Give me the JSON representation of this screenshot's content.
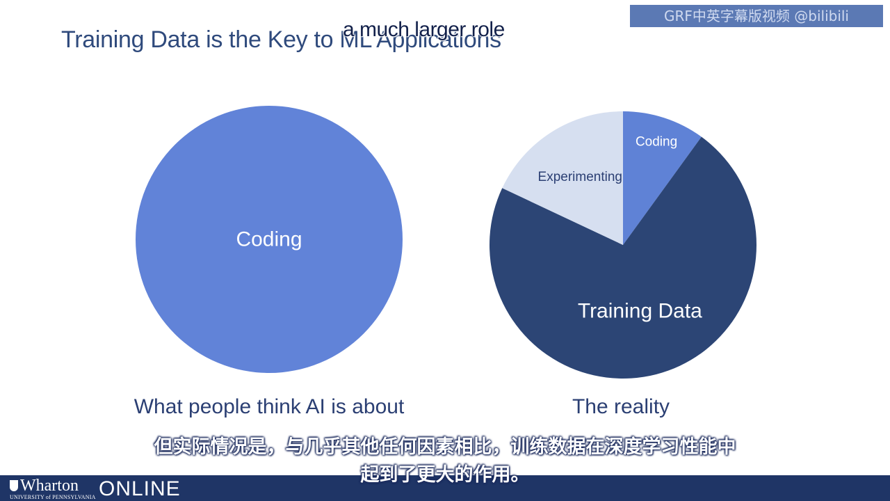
{
  "slide": {
    "title": "Training Data is the Key to ML Applications"
  },
  "captions": {
    "english_overlay": "a much larger role",
    "chinese_line1": "但实际情况是，与几乎其他任何因素相比，训练数据在深度学习性能中",
    "chinese_line2": "起到了更大的作用。"
  },
  "watermark": {
    "text": "GRF中英字幕版视频 @bilibili"
  },
  "chart_data": [
    {
      "type": "pie",
      "title": "",
      "caption": "What people think AI is about",
      "slices": [
        {
          "label": "Coding",
          "value": 100,
          "color": "#6183d8",
          "label_color": "#ffffff"
        }
      ]
    },
    {
      "type": "pie",
      "title": "",
      "caption": "The reality",
      "slices": [
        {
          "label": "Coding",
          "value": 10,
          "color": "#5f82d6",
          "label_color": "#ffffff"
        },
        {
          "label": "Training Data",
          "value": 72,
          "color": "#2c4575",
          "label_color": "#ffffff"
        },
        {
          "label": "Experimenting",
          "value": 18,
          "color": "#d6dff0",
          "label_color": "#2b3f73"
        }
      ]
    }
  ],
  "footer": {
    "logo_name": "Wharton",
    "logo_subtext": "UNIVERSITY of PENNSYLVANIA",
    "product": "ONLINE",
    "background_color": "#1f3566"
  }
}
